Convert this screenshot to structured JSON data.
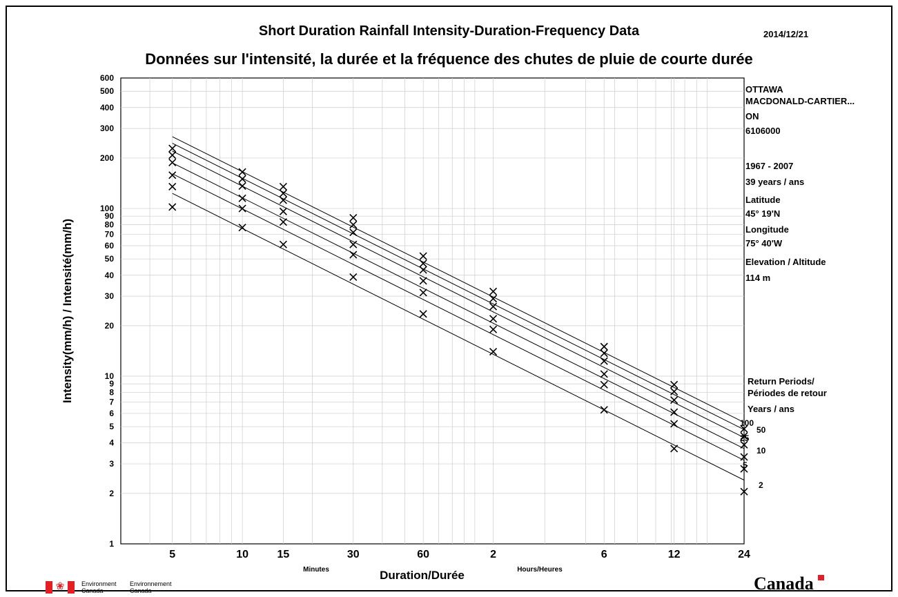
{
  "header": {
    "title_en": "Short Duration Rainfall Intensity-Duration-Frequency Data",
    "title_fr": "Données sur l'intensité, la durée et la fréquence des chutes de pluie de courte durée",
    "date": "2014/12/21"
  },
  "station": {
    "name_line1": "OTTAWA",
    "name_line2": "MACDONALD-CARTIER...",
    "province": "ON",
    "id": "6106000",
    "period": "1967 - 2007",
    "years": "39 years / ans",
    "latitude_label": "Latitude",
    "latitude_value": "45° 19'N",
    "longitude_label": "Longitude",
    "longitude_value": "75° 40'W",
    "elevation_label": "Elevation / Altitude",
    "elevation_value": "114 m"
  },
  "legend": {
    "title_line1": "Return Periods/",
    "title_line2": "Périodes de retour",
    "units": "Years / ans"
  },
  "footer": {
    "dept_en_1": "Environment",
    "dept_en_2": "Canada",
    "dept_fr_1": "Environnement",
    "dept_fr_2": "Canada",
    "wordmark": "Canada"
  },
  "colors": {
    "flag_red": "#e31e24",
    "ink": "#000000",
    "grid": "#cccccc"
  },
  "chart_data": {
    "type": "scatter",
    "x_scale": "log",
    "y_scale": "log",
    "xlabel": "Duration/Durée",
    "ylabel": "Intensity(mm/h) / Intensité(mm/h)",
    "x_unit_minutes": "Minutes",
    "x_unit_hours": "Hours/Heures",
    "xlim_minutes": [
      3,
      1440
    ],
    "ylim": [
      1,
      600
    ],
    "x_ticks": [
      {
        "minutes": 5,
        "label": "5"
      },
      {
        "minutes": 10,
        "label": "10"
      },
      {
        "minutes": 15,
        "label": "15"
      },
      {
        "minutes": 30,
        "label": "30"
      },
      {
        "minutes": 60,
        "label": "60"
      },
      {
        "minutes": 120,
        "label": "2"
      },
      {
        "minutes": 360,
        "label": "6"
      },
      {
        "minutes": 720,
        "label": "12"
      },
      {
        "minutes": 1440,
        "label": "24"
      }
    ],
    "y_ticks": [
      1,
      2,
      3,
      4,
      5,
      6,
      7,
      8,
      9,
      10,
      20,
      30,
      40,
      50,
      60,
      70,
      80,
      90,
      100,
      200,
      300,
      400,
      500,
      600
    ],
    "durations_minutes": [
      5,
      10,
      15,
      30,
      60,
      120,
      360,
      720,
      1440
    ],
    "series": [
      {
        "name": "2",
        "values": [
          102,
          77,
          61,
          39,
          23.5,
          14,
          6.3,
          3.7,
          2.05
        ],
        "fit_start": 123,
        "fit_end": 2.4
      },
      {
        "name": "5",
        "values": [
          135,
          100,
          83,
          53,
          31.5,
          19,
          8.9,
          5.2,
          2.8
        ],
        "fit_start": 161,
        "fit_end": 3.15
      },
      {
        "name": "10",
        "values": [
          158,
          115,
          96,
          61,
          37,
          22,
          10.3,
          6.1,
          3.3
        ],
        "fit_start": 187,
        "fit_end": 3.7
      },
      {
        "name": "25",
        "values": [
          188,
          136,
          112,
          72,
          43,
          26,
          12.3,
          7.2,
          3.9
        ],
        "fit_start": 220,
        "fit_end": 4.3
      },
      {
        "name": "50",
        "values": [
          208,
          150,
          123,
          80,
          47,
          29,
          13.7,
          8.1,
          4.4
        ],
        "fit_start": 245,
        "fit_end": 4.8
      },
      {
        "name": "100",
        "values": [
          228,
          165,
          135,
          88,
          52,
          32,
          15,
          8.9,
          4.85
        ],
        "fit_start": 268,
        "fit_end": 5.3
      }
    ],
    "grid": true
  }
}
